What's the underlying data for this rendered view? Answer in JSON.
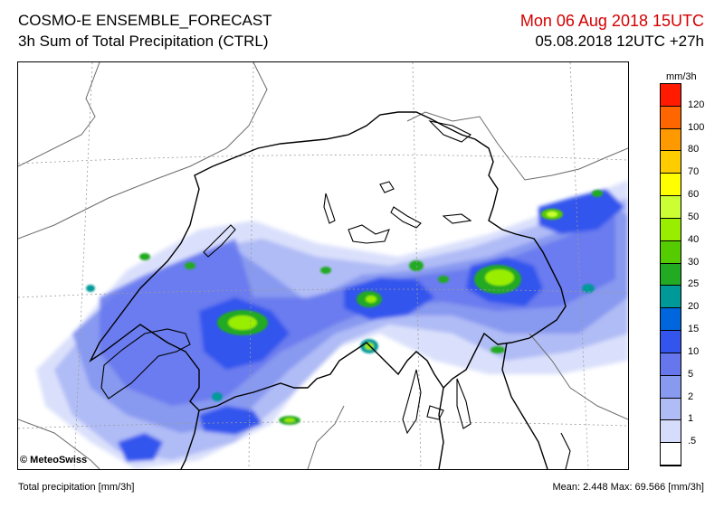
{
  "header": {
    "title_line1": "COSMO-E ENSEMBLE_FORECAST",
    "title_line2": "3h Sum of Total Precipitation (CTRL)",
    "valid_time": "Mon 06 Aug 2018 15UTC",
    "run_info": "05.08.2018 12UTC +27h"
  },
  "map": {
    "copyright": "© MeteoSwiss",
    "border_color": "#000000",
    "grid_color": "#9a9a9a"
  },
  "legend": {
    "unit": "mm/3h",
    "levels": [
      {
        "label": "120",
        "color": "#ff1a00"
      },
      {
        "label": "100",
        "color": "#ff6600"
      },
      {
        "label": "80",
        "color": "#ff9900"
      },
      {
        "label": "70",
        "color": "#ffcc00"
      },
      {
        "label": "60",
        "color": "#ffff00"
      },
      {
        "label": "50",
        "color": "#ccff33"
      },
      {
        "label": "40",
        "color": "#99ee00"
      },
      {
        "label": "30",
        "color": "#55cc00"
      },
      {
        "label": "25",
        "color": "#22aa22"
      },
      {
        "label": "20",
        "color": "#009999"
      },
      {
        "label": "15",
        "color": "#0066dd"
      },
      {
        "label": "10",
        "color": "#3355ee"
      },
      {
        "label": "5",
        "color": "#6677ee"
      },
      {
        "label": "2",
        "color": "#8899f0"
      },
      {
        "label": "1",
        "color": "#b0bcf6"
      },
      {
        "label": ".5",
        "color": "#d6ddfb"
      },
      {
        "label": "",
        "color": "#ffffff"
      }
    ]
  },
  "footer": {
    "left": "Total precipitation [mm/3h]",
    "right": "Mean:   2.448 Max:  69.566 [mm/3h]"
  }
}
